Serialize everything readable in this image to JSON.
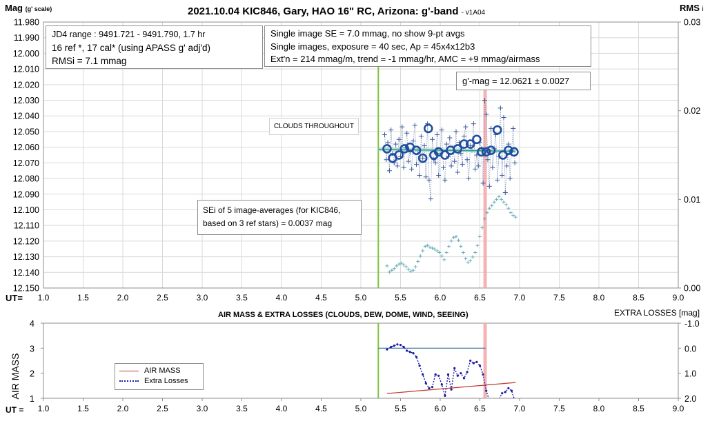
{
  "colors": {
    "gridline": "#d9d9d9",
    "axis": "#8c8c8c",
    "single_images": "#3a5a9a",
    "averages": "#1f4e9e",
    "fit_line": "#2e9c8c",
    "fit_line_bg": "#9fd3c8",
    "rms_points": "#6aaeb8",
    "start_line": "#7dc242",
    "end_line": "#f4a6a6",
    "airmass": "#c0392b",
    "extra_losses": "#1a1aa8",
    "extra_losses_ref": "#2e6e9a"
  },
  "chart_data": [
    {
      "type": "scatter",
      "title": "2021.10.04 KIC846, Gary, HAO 16\" RC, Arizona: g'-band",
      "version": "v1A04",
      "ylabel_main": "Mag",
      "ylabel_sub": "(g' scale)",
      "y2label_main": "RMS",
      "y2label_sub": "i",
      "xlabel": "UT=",
      "xlim": [
        1.0,
        9.0
      ],
      "x_ticks": [
        "1.0",
        "1.5",
        "2.0",
        "2.5",
        "3.0",
        "3.5",
        "4.0",
        "4.5",
        "5.0",
        "5.5",
        "6.0",
        "6.5",
        "7.0",
        "7.5",
        "8.0",
        "8.5",
        "9.0"
      ],
      "ylim": [
        11.98,
        12.15
      ],
      "y_inverted": true,
      "y_ticks": [
        "11.980",
        "11.990",
        "12.000",
        "12.010",
        "12.020",
        "12.030",
        "12.040",
        "12.050",
        "12.060",
        "12.070",
        "12.080",
        "12.090",
        "12.100",
        "12.110",
        "12.120",
        "12.130",
        "12.140",
        "12.150"
      ],
      "y2lim": [
        0.0,
        0.03
      ],
      "y2_ticks": [
        "0.03",
        "0.02",
        "0.01",
        "0.00"
      ],
      "grid": true,
      "start_ut": 5.22,
      "end_ut": 6.57,
      "fit": {
        "x": [
          5.22,
          6.95
        ],
        "y": [
          12.0614,
          12.0626
        ]
      },
      "averages": {
        "name": "9-pt avgs",
        "x": [
          5.33,
          5.4,
          5.48,
          5.55,
          5.62,
          5.7,
          5.78,
          5.85,
          5.92,
          5.98,
          6.06,
          6.13,
          6.22,
          6.3,
          6.38,
          6.46,
          6.52,
          6.58,
          6.64,
          6.72,
          6.79,
          6.86,
          6.93
        ],
        "y": [
          12.061,
          12.067,
          12.065,
          12.061,
          12.06,
          12.062,
          12.067,
          12.048,
          12.065,
          12.063,
          12.065,
          12.062,
          12.061,
          12.058,
          12.058,
          12.055,
          12.063,
          12.063,
          12.062,
          12.049,
          12.065,
          12.062,
          12.063
        ]
      },
      "single_images": {
        "x": [
          5.3,
          5.32,
          5.34,
          5.36,
          5.38,
          5.4,
          5.42,
          5.44,
          5.46,
          5.48,
          5.5,
          5.52,
          5.54,
          5.56,
          5.58,
          5.6,
          5.62,
          5.64,
          5.66,
          5.68,
          5.7,
          5.72,
          5.74,
          5.76,
          5.78,
          5.8,
          5.82,
          5.84,
          5.86,
          5.88,
          5.9,
          5.92,
          5.94,
          5.96,
          5.98,
          6.0,
          6.02,
          6.04,
          6.06,
          6.08,
          6.1,
          6.12,
          6.14,
          6.16,
          6.18,
          6.2,
          6.22,
          6.24,
          6.26,
          6.28,
          6.3,
          6.32,
          6.34,
          6.36,
          6.38,
          6.4,
          6.42,
          6.44,
          6.46,
          6.48,
          6.5,
          6.52,
          6.54,
          6.56,
          6.58,
          6.6,
          6.62,
          6.64,
          6.66,
          6.68,
          6.7,
          6.72,
          6.74,
          6.76,
          6.78,
          6.8,
          6.82,
          6.84,
          6.86,
          6.88,
          6.9,
          6.92,
          6.94
        ],
        "y": [
          12.052,
          12.068,
          12.057,
          12.075,
          12.049,
          12.064,
          12.07,
          12.058,
          12.072,
          12.055,
          12.066,
          12.047,
          12.073,
          12.06,
          12.051,
          12.069,
          12.063,
          12.074,
          12.056,
          12.046,
          12.071,
          12.062,
          12.078,
          12.053,
          12.067,
          12.059,
          12.079,
          12.045,
          12.081,
          12.093,
          12.055,
          12.068,
          12.07,
          12.052,
          12.078,
          12.064,
          12.049,
          12.073,
          12.081,
          12.058,
          12.066,
          12.054,
          12.072,
          12.06,
          12.069,
          12.05,
          12.076,
          12.057,
          12.064,
          12.071,
          12.053,
          12.047,
          12.068,
          12.08,
          12.059,
          12.062,
          12.045,
          12.074,
          12.065,
          12.072,
          12.057,
          12.061,
          12.083,
          12.03,
          12.039,
          12.068,
          12.085,
          12.048,
          12.073,
          12.061,
          12.052,
          12.081,
          12.066,
          12.035,
          12.078,
          12.041,
          12.089,
          12.072,
          12.058,
          12.08,
          12.062,
          12.048,
          12.07
        ]
      },
      "rms_series": {
        "x": [
          5.33,
          5.36,
          5.39,
          5.42,
          5.45,
          5.48,
          5.51,
          5.54,
          5.57,
          5.6,
          5.63,
          5.66,
          5.69,
          5.72,
          5.75,
          5.78,
          5.81,
          5.84,
          5.87,
          5.9,
          5.93,
          5.96,
          5.99,
          6.02,
          6.05,
          6.08,
          6.11,
          6.14,
          6.17,
          6.2,
          6.23,
          6.26,
          6.29,
          6.32,
          6.35,
          6.38,
          6.41,
          6.44,
          6.47,
          6.5,
          6.53,
          6.56,
          6.59,
          6.62,
          6.65,
          6.68,
          6.71,
          6.74,
          6.77,
          6.8,
          6.83,
          6.86,
          6.89,
          6.92,
          6.95
        ],
        "y": [
          0.0025,
          0.0018,
          0.002,
          0.0022,
          0.0025,
          0.0027,
          0.0028,
          0.0026,
          0.0024,
          0.0021,
          0.0019,
          0.002,
          0.0024,
          0.003,
          0.0036,
          0.0042,
          0.0047,
          0.0048,
          0.0046,
          0.0045,
          0.0044,
          0.0042,
          0.004,
          0.0036,
          0.0032,
          0.004,
          0.0047,
          0.0053,
          0.0057,
          0.0058,
          0.0054,
          0.0047,
          0.004,
          0.0033,
          0.0029,
          0.0031,
          0.0035,
          0.004,
          0.0048,
          0.0058,
          0.0068,
          0.0078,
          0.0085,
          0.009,
          0.0093,
          0.0097,
          0.01,
          0.0103,
          0.01,
          0.0097,
          0.0094,
          0.009,
          0.0085,
          0.0082,
          0.008
        ]
      },
      "annotations": [
        "CLOUDS THROUGHOUT"
      ]
    },
    {
      "type": "line",
      "title": "AIR MASS & EXTRA LOSSES (CLOUDS, DEW, DOME, WIND, SEEING)",
      "ylabel": "AIR MASS",
      "y2label": "EXTRA LOSSES [mag]",
      "xlabel": "UT =",
      "xlim": [
        1.0,
        9.0
      ],
      "x_ticks": [
        "1.0",
        "1.5",
        "2.0",
        "2.5",
        "3.0",
        "3.5",
        "4.0",
        "4.5",
        "5.0",
        "5.5",
        "6.0",
        "6.5",
        "7.0",
        "7.5",
        "8.0",
        "8.5",
        "9.0"
      ],
      "ylim": [
        1,
        4
      ],
      "y_ticks": [
        "4",
        "3",
        "2",
        "1"
      ],
      "y2lim": [
        -1.0,
        2.0
      ],
      "y2_inverted": true,
      "y2_ticks": [
        "-1.0",
        "0.0",
        "1.0",
        "2.0"
      ],
      "legend_position": "left",
      "series": [
        {
          "name": "AIR MASS",
          "x": [
            5.33,
            6.95
          ],
          "y": [
            1.19,
            1.63
          ]
        },
        {
          "name": "Extra Losses",
          "x": [
            5.33,
            5.38,
            5.42,
            5.46,
            5.5,
            5.54,
            5.58,
            5.62,
            5.66,
            5.7,
            5.74,
            5.78,
            5.82,
            5.86,
            5.9,
            5.94,
            5.98,
            6.02,
            6.06,
            6.1,
            6.14,
            6.18,
            6.22,
            6.26,
            6.3,
            6.34,
            6.38,
            6.42,
            6.46,
            6.5,
            6.54,
            6.58,
            6.62,
            6.66,
            6.7,
            6.74,
            6.78,
            6.82,
            6.86,
            6.9,
            6.94
          ],
          "y": [
            0.05,
            -0.05,
            -0.1,
            -0.15,
            -0.13,
            -0.05,
            0.1,
            0.15,
            0.2,
            0.35,
            0.7,
            1.05,
            1.4,
            1.6,
            1.55,
            1.05,
            1.1,
            1.45,
            1.9,
            1.05,
            1.65,
            0.8,
            1.1,
            1.0,
            1.2,
            0.95,
            0.5,
            0.6,
            0.55,
            0.7,
            1.05,
            1.7,
            2.1,
            2.05,
            2.1,
            2.05,
            1.8,
            1.75,
            1.6,
            1.7,
            2.1
          ]
        },
        {
          "name": "",
          "x": [
            5.22,
            6.57
          ],
          "y": [
            0.0,
            0.0
          ]
        }
      ]
    }
  ],
  "notes": {
    "range": {
      "line1": "JD4 range : 9491.721 - 9491.790,  1.7  hr",
      "line2": "16 ref *, 17 cal* (using APASS g' adj'd)",
      "line3": "RMSi = 7.1 mmag"
    },
    "single": {
      "line1": "Single image SE = 7.0 mmag, no show  9-pt avgs",
      "line2": "Single images, exposure = 40 sec, Ap = 45x4x12b3",
      "line3": "Ext'n = 214 mmag/m, trend = -1 mmag/hr, AMC = +9 mmag/airmass"
    },
    "gmag": "g'-mag = 12.0621 ± 0.0027",
    "sei": {
      "line1": "SEi of 5 image-averages (for KIC846,",
      "line2": "based on 3 ref stars) = 0.0037 mag"
    }
  }
}
